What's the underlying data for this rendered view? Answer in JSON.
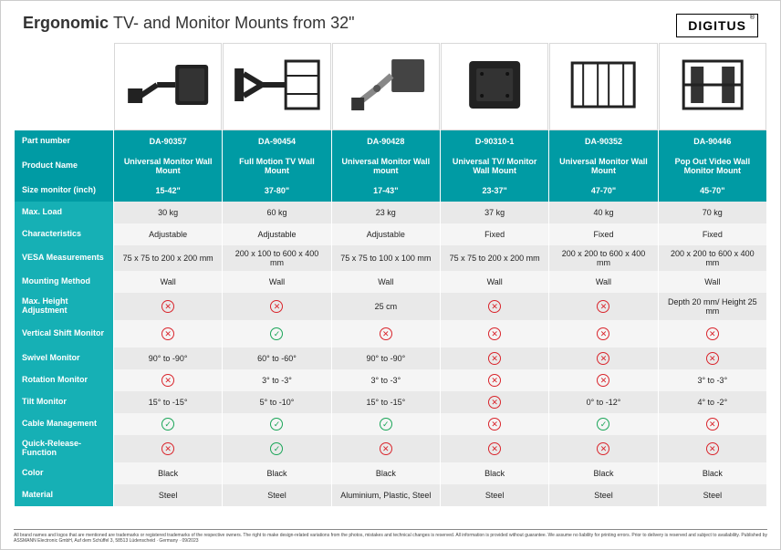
{
  "header": {
    "title_bold": "Ergonomic",
    "title_light": "TV- and Monitor Mounts from 32\"",
    "brand": "DIGITUS"
  },
  "products": [
    {
      "id": "p1",
      "svg": "arm1"
    },
    {
      "id": "p2",
      "svg": "arm2"
    },
    {
      "id": "p3",
      "svg": "arm3"
    },
    {
      "id": "p4",
      "svg": "plate1"
    },
    {
      "id": "p5",
      "svg": "plate2"
    },
    {
      "id": "p6",
      "svg": "plate3"
    }
  ],
  "rows": [
    {
      "label": "Part number",
      "kind": "hdr",
      "values": [
        "DA-90357",
        "DA-90454",
        "DA-90428",
        "D-90310-1",
        "DA-90352",
        "DA-90446"
      ]
    },
    {
      "label": "Product Name",
      "kind": "hdr",
      "tall": true,
      "values": [
        "Universal Monitor Wall Mount",
        "Full Motion TV Wall Mount",
        "Universal Monitor Wall mount",
        "Universal TV/ Monitor Wall Mount",
        "Universal Monitor Wall Mount",
        "Pop Out Video Wall Monitor Mount"
      ]
    },
    {
      "label": "Size monitor (inch)",
      "kind": "hdr",
      "values": [
        "15-42\"",
        "37-80\"",
        "17-43\"",
        "23-37\"",
        "47-70\"",
        "45-70\""
      ]
    },
    {
      "label": "Max. Load",
      "kind": "data",
      "stripe": "odd",
      "values": [
        "30 kg",
        "60 kg",
        "23 kg",
        "37 kg",
        "40 kg",
        "70 kg"
      ]
    },
    {
      "label": "Characteristics",
      "kind": "data",
      "stripe": "even",
      "values": [
        "Adjustable",
        "Adjustable",
        "Adjustable",
        "Fixed",
        "Fixed",
        "Fixed"
      ]
    },
    {
      "label": "VESA Measurements",
      "kind": "data",
      "stripe": "odd",
      "values": [
        "75 x 75 to 200 x 200 mm",
        "200 x 100 to 600 x 400 mm",
        "75 x 75 to 100 x 100 mm",
        "75 x 75 to 200 x 200 mm",
        "200 x 200 to 600 x 400 mm",
        "200 x 200 to 600 x 400 mm"
      ]
    },
    {
      "label": "Mounting Method",
      "kind": "data",
      "stripe": "even",
      "values": [
        "Wall",
        "Wall",
        "Wall",
        "Wall",
        "Wall",
        "Wall"
      ]
    },
    {
      "label": "Max. Height Adjustment",
      "kind": "data",
      "stripe": "odd",
      "tall": true,
      "values": [
        "NO",
        "NO",
        "25 cm",
        "NO",
        "NO",
        "Depth 20 mm/ Height 25 mm"
      ]
    },
    {
      "label": "Vertical Shift Monitor",
      "kind": "data",
      "stripe": "even",
      "tall": true,
      "values": [
        "NO",
        "YES",
        "NO",
        "NO",
        "NO",
        "NO"
      ]
    },
    {
      "label": "Swivel Monitor",
      "kind": "data",
      "stripe": "odd",
      "values": [
        "90° to -90°",
        "60° to -60°",
        "90° to -90°",
        "NO",
        "NO",
        "NO"
      ]
    },
    {
      "label": "Rotation Monitor",
      "kind": "data",
      "stripe": "even",
      "values": [
        "NO",
        "3° to -3°",
        "3° to -3°",
        "NO",
        "NO",
        "3° to -3°"
      ]
    },
    {
      "label": "Tilt Monitor",
      "kind": "data",
      "stripe": "odd",
      "values": [
        "15° to -15°",
        "5° to -10°",
        "15° to -15°",
        "NO",
        "0° to -12°",
        "4° to -2°"
      ]
    },
    {
      "label": "Cable Management",
      "kind": "data",
      "stripe": "even",
      "values": [
        "YES",
        "YES",
        "YES",
        "NO",
        "YES",
        "NO"
      ]
    },
    {
      "label": "Quick-Release-Function",
      "kind": "data",
      "stripe": "odd",
      "tall": true,
      "values": [
        "NO",
        "YES",
        "NO",
        "NO",
        "NO",
        "NO"
      ]
    },
    {
      "label": "Color",
      "kind": "data",
      "stripe": "even",
      "values": [
        "Black",
        "Black",
        "Black",
        "Black",
        "Black",
        "Black"
      ]
    },
    {
      "label": "Material",
      "kind": "data",
      "stripe": "odd",
      "values": [
        "Steel",
        "Steel",
        "Aluminium, Plastic, Steel",
        "Steel",
        "Steel",
        "Steel"
      ]
    }
  ],
  "colors": {
    "header_teal": "#009ba4",
    "label_teal": "#16b0b5",
    "row_odd": "#e9e9e9",
    "row_even": "#f5f5f5",
    "yes": "#1aa558",
    "no": "#d9242b"
  },
  "footer": "All brand names and logos that are mentioned are trademarks or registered trademarks of the respective owners. The right to make design-related variations from the photos, mistakes and technical changes is reserved. All information is provided without guarantee. We assume no liability for printing errors. Prior to delivery is reserved and subject to availability. Published by ASSMANN Electronic GmbH, Auf dem Schüffel 3, 58513 Lüdenscheid · Germany · 09/2023"
}
